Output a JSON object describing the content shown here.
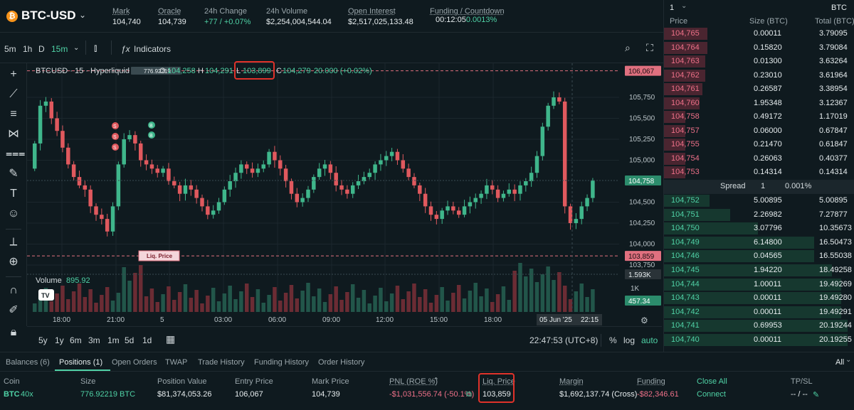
{
  "header": {
    "coin_icon": "bitcoin-icon",
    "pair": "BTC-USD",
    "stats": [
      {
        "label": "Mark",
        "value": "104,740",
        "underline": true
      },
      {
        "label": "Oracle",
        "value": "104,739",
        "underline": true
      },
      {
        "label": "24h Change",
        "value": "+77 / +0.07%",
        "underline": false,
        "color": "green"
      },
      {
        "label": "24h Volume",
        "value": "$2,254,004,544.04",
        "underline": false
      },
      {
        "label": "Open Interest",
        "value": "$2,517,025,133.48",
        "underline": true
      },
      {
        "label": "Funding / Countdown",
        "value": "0.0013%",
        "value2": "00:12:05",
        "underline": true
      }
    ]
  },
  "toolbar": {
    "intervals": [
      "5m",
      "1h",
      "D",
      "15m"
    ],
    "selected_interval": "15m",
    "indicators_label": "Indicators"
  },
  "chart": {
    "legend": {
      "symbol": "BTCUSD · 15 · Hyperliquid",
      "o_label": "O",
      "o": "104,258",
      "h_label": "H",
      "h": "104,291",
      "l_label": "L",
      "l": "103,899",
      "c_label": "C",
      "c": "104,279",
      "change": "20.000 (+0.02%)",
      "position_badge": "776.92219"
    },
    "price_ticks": [
      "105,750",
      "105,500",
      "105,250",
      "105,000",
      "104,500",
      "104,250",
      "104,000",
      "103,750"
    ],
    "price_labels": {
      "entry": "106,067",
      "current": "104,758",
      "liq": "103,859",
      "volume_cursor": "1.593K",
      "volume_1k": "1K",
      "volume_current": "457.34"
    },
    "liq_label": "Liq. Price",
    "volume_label": "Volume",
    "volume_value": "895.92",
    "time_ticks": [
      "18:00",
      "21:00",
      "5",
      "03:00",
      "06:00",
      "09:00",
      "12:00",
      "15:00",
      "18:00"
    ],
    "cursor_time": "05 Jun '25",
    "cursor_time2": "22:15",
    "markers_sell": [
      "S",
      "S",
      "S"
    ],
    "markers_buy": [
      "B",
      "B"
    ]
  },
  "timeframes": [
    "5y",
    "1y",
    "6m",
    "3m",
    "1m",
    "5d",
    "1d"
  ],
  "clock": "22:47:53 (UTC+8)",
  "scale_opts": [
    "%",
    "log",
    "auto"
  ],
  "orderbook": {
    "group": "1",
    "asset": "BTC",
    "headers": [
      "Price",
      "Size (BTC)",
      "Total (BTC)"
    ],
    "asks": [
      {
        "price": "104,765",
        "size": "0.00011",
        "total": "3.79095"
      },
      {
        "price": "104,764",
        "size": "0.15820",
        "total": "3.79084"
      },
      {
        "price": "104,763",
        "size": "0.01300",
        "total": "3.63264"
      },
      {
        "price": "104,762",
        "size": "0.23010",
        "total": "3.61964"
      },
      {
        "price": "104,761",
        "size": "0.26587",
        "total": "3.38954"
      },
      {
        "price": "104,760",
        "size": "1.95348",
        "total": "3.12367"
      },
      {
        "price": "104,758",
        "size": "0.49172",
        "total": "1.17019"
      },
      {
        "price": "104,757",
        "size": "0.06000",
        "total": "0.67847"
      },
      {
        "price": "104,755",
        "size": "0.21470",
        "total": "0.61847"
      },
      {
        "price": "104,754",
        "size": "0.26063",
        "total": "0.40377"
      },
      {
        "price": "104,753",
        "size": "0.14314",
        "total": "0.14314"
      }
    ],
    "spread": {
      "label": "Spread",
      "value": "1",
      "pct": "0.001%"
    },
    "bids": [
      {
        "price": "104,752",
        "size": "5.00895",
        "total": "5.00895"
      },
      {
        "price": "104,751",
        "size": "2.26982",
        "total": "7.27877"
      },
      {
        "price": "104,750",
        "size": "3.07796",
        "total": "10.35673"
      },
      {
        "price": "104,749",
        "size": "6.14800",
        "total": "16.50473"
      },
      {
        "price": "104,746",
        "size": "0.04565",
        "total": "16.55038"
      },
      {
        "price": "104,745",
        "size": "1.94220",
        "total": "18.49258"
      },
      {
        "price": "104,744",
        "size": "1.00011",
        "total": "19.49269"
      },
      {
        "price": "104,743",
        "size": "0.00011",
        "total": "19.49280"
      },
      {
        "price": "104,742",
        "size": "0.00011",
        "total": "19.49291"
      },
      {
        "price": "104,741",
        "size": "0.69953",
        "total": "20.19244"
      },
      {
        "price": "104,740",
        "size": "0.00011",
        "total": "20.19255"
      }
    ]
  },
  "panel": {
    "tabs": [
      "Balances (6)",
      "Positions (1)",
      "Open Orders",
      "TWAP",
      "Trade History",
      "Funding History",
      "Order History"
    ],
    "active_tab": "Positions (1)",
    "filter": "All",
    "columns": [
      "Coin",
      "Size",
      "Position Value",
      "Entry Price",
      "Mark Price",
      "PNL (ROE %)",
      "Liq. Price",
      "Margin",
      "Funding",
      "Close All",
      "TP/SL"
    ],
    "row": {
      "coin": "BTC",
      "leverage": "40x",
      "size": "776.92219 BTC",
      "position_value": "$81,374,053.26",
      "entry": "106,067",
      "mark": "104,739",
      "pnl": "-$1,031,556.74 (-50.1%)",
      "liq": "103,859",
      "margin": "$1,692,137.74 (Cross)",
      "funding": "-$82,346.61",
      "close": "Connect",
      "tpsl": "-- / --"
    }
  },
  "colors": {
    "up": "#3fb68b",
    "down": "#e0595e",
    "accent": "#4fd1a5",
    "highlight": "#e0322a"
  }
}
